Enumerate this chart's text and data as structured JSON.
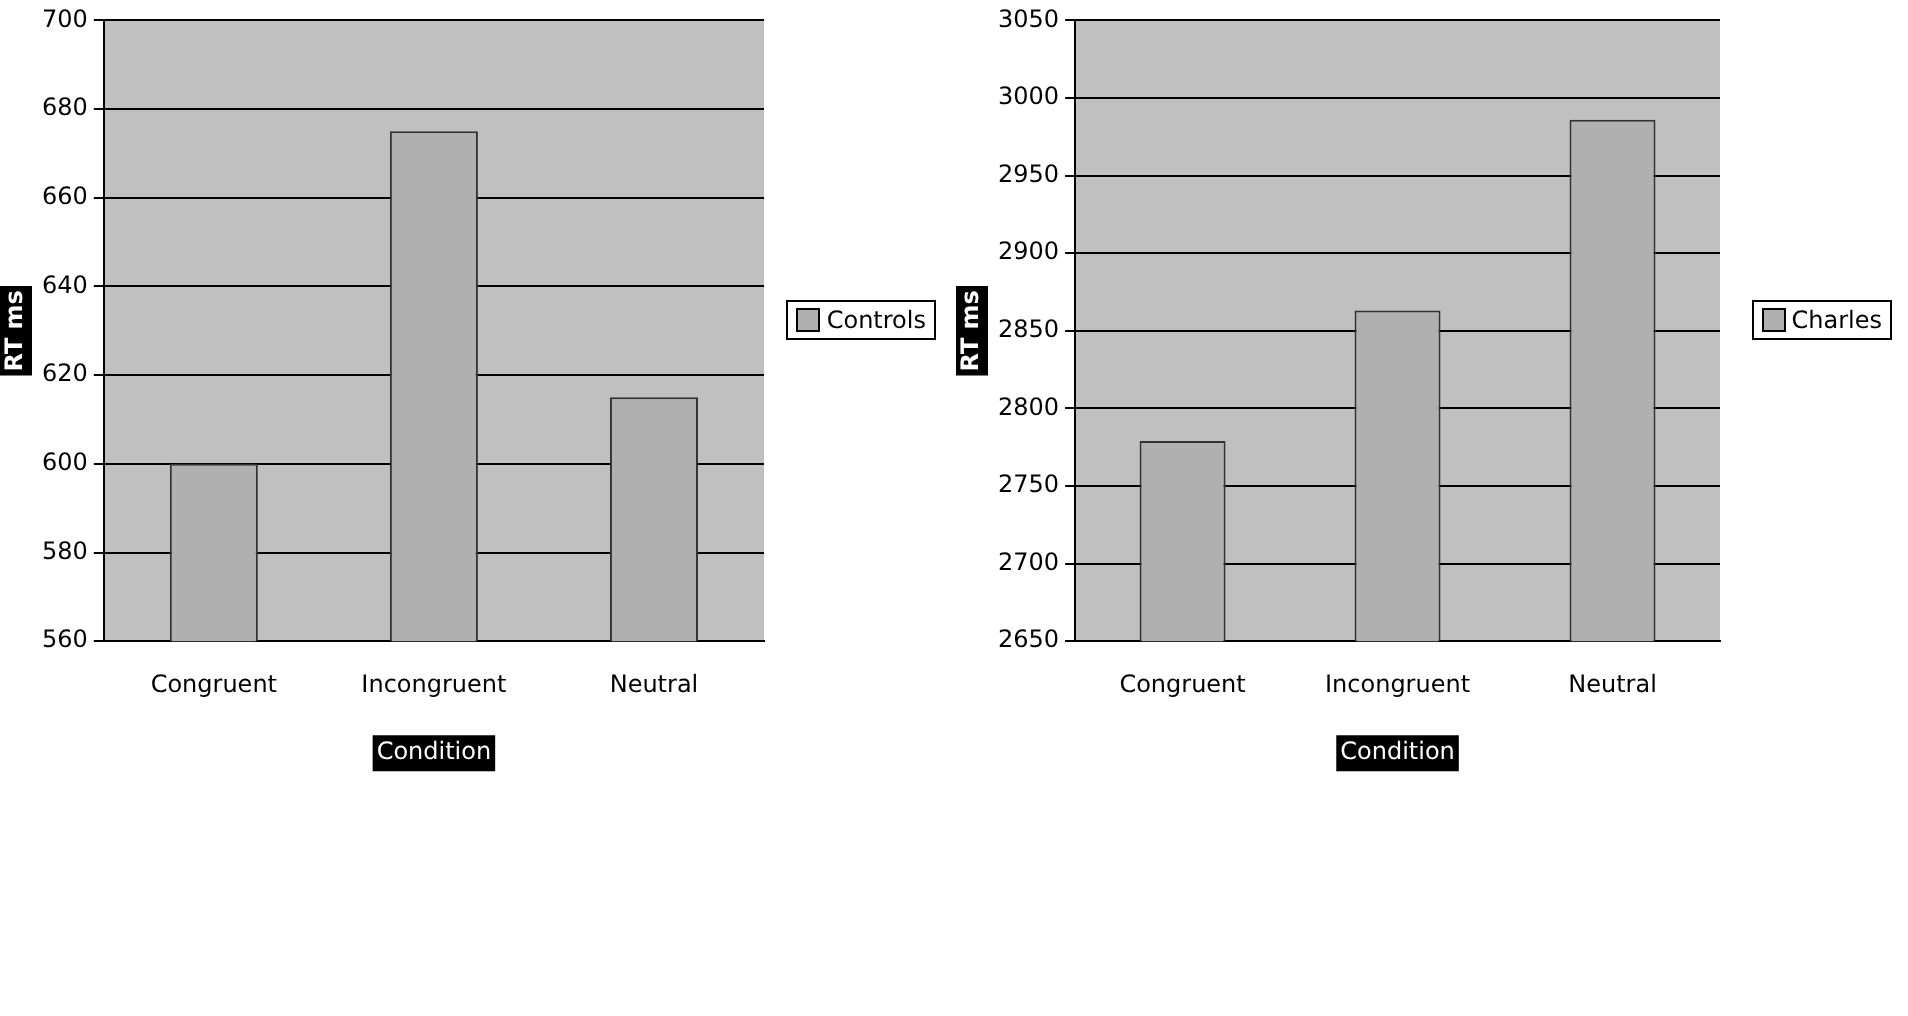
{
  "chart_data": [
    {
      "type": "bar",
      "xlabel": "Condition",
      "ylabel": "RT ms",
      "categories": [
        "Congruent",
        "Incongruent",
        "Neutral"
      ],
      "series": [
        {
          "name": "Controls",
          "color": "#b0b0b0",
          "values": [
            600,
            675,
            615
          ]
        }
      ],
      "ylim": [
        560,
        700
      ],
      "yticks": [
        560,
        580,
        600,
        620,
        640,
        660,
        680,
        700
      ],
      "grid": "y",
      "legend": "right"
    },
    {
      "type": "bar",
      "xlabel": "Condition",
      "ylabel": "RT ms",
      "categories": [
        "Congruent",
        "Incongruent",
        "Neutral"
      ],
      "series": [
        {
          "name": "Charles",
          "color": "#b0b0b0",
          "values": [
            2779,
            2863,
            2986
          ]
        }
      ],
      "ylim": [
        2650,
        3050
      ],
      "yticks": [
        2650,
        2700,
        2750,
        2800,
        2850,
        2900,
        2950,
        3000,
        3050
      ],
      "grid": "y",
      "legend": "right"
    }
  ]
}
